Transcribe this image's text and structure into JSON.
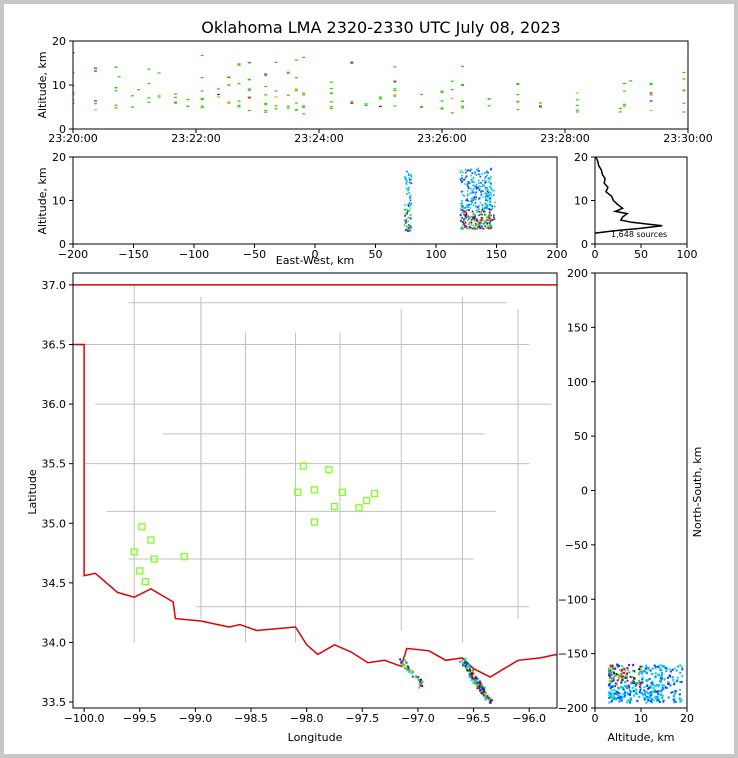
{
  "chart_data": [
    {
      "type": "scatter",
      "panel": "time-altitude",
      "title": "Oklahoma LMA 2320-2330 UTC July 08, 2023",
      "ylabel": "Altitude, km",
      "ylim": [
        0,
        20
      ],
      "x_ticks": [
        "23:20:00",
        "23:22:00",
        "23:24:00",
        "23:26:00",
        "23:28:00",
        "23:30:00"
      ],
      "y_ticks": [
        "0",
        "10",
        "20"
      ],
      "x_unit": "minutes after 23:20:00",
      "columns": [
        {
          "t": 0.0,
          "alts": [
            5.5,
            7,
            8,
            9.5,
            13,
            17
          ]
        },
        {
          "t": 1.1,
          "alts": [
            4.5,
            6,
            13.5
          ]
        },
        {
          "t": 2.1,
          "alts": [
            5,
            8.5,
            9.5,
            14
          ]
        },
        {
          "t": 2.25,
          "alts": [
            11.5
          ]
        },
        {
          "t": 2.9,
          "alts": [
            5,
            7.5
          ]
        },
        {
          "t": 3.2,
          "alts": [
            9
          ]
        },
        {
          "t": 3.7,
          "alts": [
            6,
            7,
            10,
            13.5
          ]
        },
        {
          "t": 4.2,
          "alts": [
            7.5,
            12.5
          ]
        },
        {
          "t": 5.0,
          "alts": [
            6,
            7,
            8
          ]
        },
        {
          "t": 5.6,
          "alts": [
            5,
            6.5
          ]
        },
        {
          "t": 6.3,
          "alts": [
            5,
            7,
            9,
            11.5,
            17
          ]
        },
        {
          "t": 7.1,
          "alts": [
            7,
            8,
            9
          ]
        },
        {
          "t": 7.6,
          "alts": [
            6,
            10,
            12
          ]
        },
        {
          "t": 8.1,
          "alts": [
            5,
            6.5,
            10.5,
            14.5
          ]
        },
        {
          "t": 8.6,
          "alts": [
            4.5,
            7,
            9,
            11,
            15
          ]
        },
        {
          "t": 9.4,
          "alts": [
            4,
            5.5,
            8,
            10,
            12.5
          ]
        },
        {
          "t": 9.9,
          "alts": [
            5,
            7,
            9,
            15
          ]
        },
        {
          "t": 10.5,
          "alts": [
            5,
            8,
            13
          ]
        },
        {
          "t": 10.9,
          "alts": [
            4,
            6,
            9,
            12,
            15.5
          ]
        },
        {
          "t": 11.25,
          "alts": [
            3.5,
            5,
            8,
            16
          ]
        },
        {
          "t": 12.6,
          "alts": [
            5,
            6.5,
            8,
            9.5,
            10.5
          ]
        },
        {
          "t": 13.6,
          "alts": [
            6,
            15
          ]
        },
        {
          "t": 14.3,
          "alts": [
            5.5
          ]
        },
        {
          "t": 15.0,
          "alts": [
            5,
            7
          ]
        },
        {
          "t": 15.7,
          "alts": [
            5,
            7.5,
            9,
            11,
            14
          ]
        },
        {
          "t": 17.0,
          "alts": [
            5,
            7.5
          ]
        },
        {
          "t": 18.0,
          "alts": [
            4.5,
            6,
            8.5
          ]
        },
        {
          "t": 18.5,
          "alts": [
            4,
            7,
            9,
            11
          ]
        },
        {
          "t": 19.0,
          "alts": [
            5,
            6.5,
            10,
            14
          ]
        },
        {
          "t": 20.3,
          "alts": [
            5.5,
            7
          ]
        },
        {
          "t": 21.7,
          "alts": [
            4.5,
            6,
            8,
            10
          ]
        },
        {
          "t": 22.8,
          "alts": [
            5,
            6
          ]
        },
        {
          "t": 24.6,
          "alts": [
            4,
            5.5,
            7,
            8.5
          ]
        },
        {
          "t": 26.7,
          "alts": [
            4,
            5
          ]
        },
        {
          "t": 26.9,
          "alts": [
            5,
            6,
            8.5,
            10.5
          ]
        },
        {
          "t": 27.2,
          "alts": [
            11
          ]
        },
        {
          "t": 28.2,
          "alts": [
            4.5,
            6,
            8,
            10
          ]
        },
        {
          "t": 29.8,
          "alts": [
            3.5,
            6,
            8.5,
            11,
            13
          ]
        }
      ]
    },
    {
      "type": "scatter",
      "panel": "east-west-altitude",
      "xlabel": "East-West, km",
      "ylabel": "Altitude, km",
      "xlim": [
        -200,
        200
      ],
      "ylim": [
        0,
        20
      ],
      "x_ticks": [
        "−200",
        "−150",
        "−100",
        "−50",
        "0",
        "50",
        "100",
        "150",
        "200"
      ],
      "y_ticks": [
        "0",
        "10",
        "20"
      ],
      "clusters": [
        {
          "x": 77,
          "alt_min": 3,
          "alt_max": 17,
          "x_spread": 3,
          "n": 90
        },
        {
          "x": 133,
          "alt_min": 3.5,
          "alt_max": 17.5,
          "x_spread": 13,
          "n": 420
        },
        {
          "x": 145,
          "alt_min": 5.5,
          "alt_max": 13,
          "x_spread": 4,
          "n": 40
        }
      ]
    },
    {
      "type": "line",
      "panel": "altitude-histogram",
      "annotation": "1,648 sources",
      "xlim": [
        0,
        100
      ],
      "ylim": [
        0,
        20
      ],
      "x_ticks": [
        "0",
        "50",
        "100"
      ],
      "y_ticks": [
        "0",
        "10",
        "20"
      ],
      "profile": [
        [
          0,
          2.5
        ],
        [
          20,
          3
        ],
        [
          50,
          3.6
        ],
        [
          73,
          4.2
        ],
        [
          40,
          5
        ],
        [
          28,
          5.5
        ],
        [
          30,
          6.2
        ],
        [
          35,
          7
        ],
        [
          22,
          7.5
        ],
        [
          30,
          8.2
        ],
        [
          25,
          9
        ],
        [
          20,
          10
        ],
        [
          18,
          11
        ],
        [
          12,
          12
        ],
        [
          14,
          13
        ],
        [
          10,
          14
        ],
        [
          11,
          15
        ],
        [
          8,
          16
        ],
        [
          7,
          17
        ],
        [
          4,
          18
        ],
        [
          3,
          19
        ],
        [
          1,
          20
        ]
      ]
    },
    {
      "type": "scatter",
      "panel": "map",
      "xlabel": "Longitude",
      "ylabel": "Latitude",
      "xlim": [
        -100.1,
        -95.75
      ],
      "ylim": [
        33.45,
        37.1
      ],
      "x_ticks": [
        "−100.0",
        "−99.5",
        "−99.0",
        "−98.5",
        "−98.0",
        "−97.5",
        "−97.0",
        "−96.5",
        "−96.0"
      ],
      "y_ticks": [
        "33.5",
        "34.0",
        "34.5",
        "35.0",
        "35.5",
        "36.0",
        "36.5",
        "37.0"
      ],
      "stations": [
        [
          -99.48,
          34.97
        ],
        [
          -99.4,
          34.86
        ],
        [
          -99.55,
          34.76
        ],
        [
          -99.37,
          34.7
        ],
        [
          -99.5,
          34.6
        ],
        [
          -99.45,
          34.51
        ],
        [
          -99.1,
          34.72
        ],
        [
          -98.03,
          35.48
        ],
        [
          -97.8,
          35.45
        ],
        [
          -98.08,
          35.26
        ],
        [
          -97.93,
          35.28
        ],
        [
          -97.68,
          35.26
        ],
        [
          -97.93,
          35.01
        ],
        [
          -97.75,
          35.14
        ],
        [
          -97.53,
          35.13
        ],
        [
          -97.46,
          35.19
        ],
        [
          -97.39,
          35.25
        ]
      ],
      "source_tracks": [
        {
          "lon_start": -97.15,
          "lat_start": 33.85,
          "lon_end": -96.95,
          "lat_end": 33.62,
          "n": 40
        },
        {
          "lon_start": -96.6,
          "lat_start": 33.85,
          "lon_end": -96.35,
          "lat_end": 33.5,
          "n": 140
        }
      ],
      "border_color": "#e00000",
      "county_color": "#c0c0c0",
      "station_color": "#80ff20"
    },
    {
      "type": "scatter",
      "panel": "altitude-north-south",
      "xlabel": "Altitude, km",
      "ylabel": "North-South, km",
      "xlim": [
        0,
        20
      ],
      "ylim": [
        -200,
        200
      ],
      "x_ticks": [
        "0",
        "10",
        "20"
      ],
      "y_ticks": [
        "−200",
        "−150",
        "−100",
        "−50",
        "0",
        "50",
        "100",
        "150",
        "200"
      ],
      "clusters": [
        {
          "alt_min": 3,
          "alt_max": 19,
          "ns_min": -195,
          "ns_max": -160,
          "n": 400
        }
      ]
    }
  ]
}
